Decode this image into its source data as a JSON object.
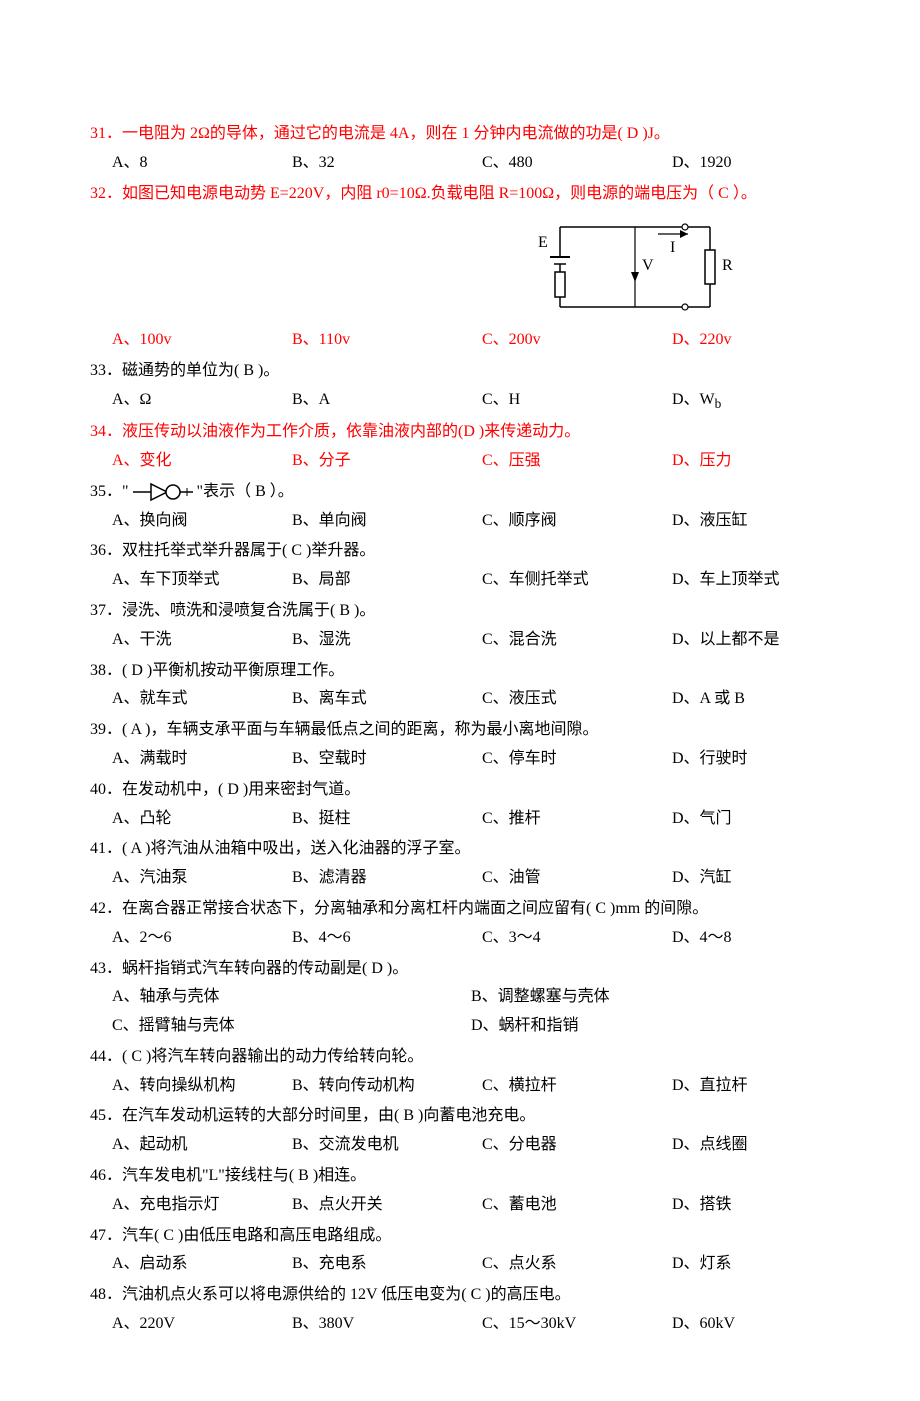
{
  "questions": [
    {
      "num": "31",
      "text_pre": "．一电阻为 2Ω的导体，通过它的电流是 4A，则在 1 分钟内电流做的功是(",
      "answer": "   D   ",
      "text_post": ")J。",
      "color": "red",
      "options": {
        "a": "A、8",
        "b": "B、32",
        "c": "C、480",
        "d": "D、1920"
      },
      "opt_color": "black"
    },
    {
      "num": "32",
      "text_pre": "．如图已知电源电动势 E=220V，内阻 r0=10Ω.负载电阻 R=100Ω，则电源的端电压为（",
      "answer": "   C   ",
      "text_post": "）。",
      "color": "red",
      "has_circuit": true,
      "options": {
        "a": "A、100v",
        "b": "B、110v",
        "c": "C、200v",
        "d": "D、220v"
      },
      "opt_color": "red"
    },
    {
      "num": "33",
      "text_pre": "．磁通势的单位为(",
      "answer": "   B   ",
      "text_post": ")。",
      "color": "black",
      "options": {
        "a": "A、Ω",
        "b": "B、A",
        "c": "C、H",
        "d": "D、Wb",
        "d_sub": "b"
      },
      "opt_color": "black"
    },
    {
      "num": "34",
      "text_pre": "．液压传动以油液作为工作介质，依靠油液内部的(",
      "answer": "D   ",
      "text_post": ")来传递动力。",
      "color": "red",
      "options": {
        "a": "A、变化",
        "b": "B、分子",
        "c": "C、压强",
        "d": "D、压力"
      },
      "opt_color": "red"
    },
    {
      "num": "35",
      "text_pre": "．\"",
      "symbol": true,
      "text_mid": "\"表示（",
      "answer": "   B   ",
      "text_post": "）。",
      "color": "black",
      "options": {
        "a": "A、换向阀",
        "b": "B、单向阀",
        "c": "C、顺序阀",
        "d": "D、液压缸"
      },
      "opt_color": "black"
    },
    {
      "num": "36",
      "text_pre": "．双柱托举式举升器属于(",
      "answer": "   C   ",
      "text_post": ")举升器。",
      "color": "black",
      "options": {
        "a": "A、车下顶举式",
        "b": "B、局部",
        "c": "C、车侧托举式",
        "d": "D、车上顶举式"
      },
      "opt_color": "black"
    },
    {
      "num": "37",
      "text_pre": "．浸洗、喷洗和浸喷复合洗属于(",
      "answer": "   B   ",
      "text_post": ")。",
      "color": "black",
      "options": {
        "a": "A、干洗",
        "b": "B、湿洗",
        "c": "C、混合洗",
        "d": "D、以上都不是"
      },
      "opt_color": "black"
    },
    {
      "num": "38",
      "text_pre": "．(",
      "answer": "   D   ",
      "text_post": ")平衡机按动平衡原理工作。",
      "color": "black",
      "options": {
        "a": "A、就车式",
        "b": "B、离车式",
        "c": "C、液压式",
        "d": "D、A 或 B"
      },
      "opt_color": "black"
    },
    {
      "num": "39",
      "text_pre": "．(",
      "answer": "   A   ",
      "text_post": ")，车辆支承平面与车辆最低点之间的距离，称为最小离地间隙。",
      "color": "black",
      "options": {
        "a": "A、满载时",
        "b": "B、空载时",
        "c": "C、停车时",
        "d": "D、行驶时"
      },
      "opt_color": "black"
    },
    {
      "num": "40",
      "text_pre": "．在发动机中，(",
      "answer": "   D   ",
      "text_post": ")用来密封气道。",
      "color": "black",
      "options": {
        "a": "A、凸轮",
        "b": "B、挺柱",
        "c": "C、推杆",
        "d": "D、气门"
      },
      "opt_color": "black"
    },
    {
      "num": "41",
      "text_pre": "．(",
      "answer": "   A   ",
      "text_post": ")将汽油从油箱中吸出，送入化油器的浮子室。",
      "color": "black",
      "options": {
        "a": "A、汽油泵",
        "b": "B、滤清器",
        "c": "C、油管",
        "d": "D、汽缸"
      },
      "opt_color": "black"
    },
    {
      "num": "42",
      "text_pre": "．在离合器正常接合状态下，分离轴承和分离杠杆内端面之间应留有(",
      "answer": "   C   ",
      "text_post": ")mm 的间隙。",
      "color": "black",
      "options": {
        "a": "A、2～6",
        "b": "B、4～6",
        "c": "C、3～4",
        "d": "D、4～8"
      },
      "opt_color": "black"
    },
    {
      "num": "43",
      "text_pre": "．蜗杆指销式汽车转向器的传动副是(",
      "answer": "   D   ",
      "text_post": ")。",
      "color": "black",
      "two_col": true,
      "options": {
        "a": "A、轴承与壳体",
        "b": "B、调整螺塞与壳体",
        "c": "C、摇臂轴与壳体",
        "d": "D、蜗杆和指销"
      },
      "opt_color": "black"
    },
    {
      "num": "44",
      "text_pre": "．(",
      "answer": "   C   ",
      "text_post": ")将汽车转向器输出的动力传给转向轮。",
      "color": "black",
      "options": {
        "a": "A、转向操纵机构",
        "b": "B、转向传动机构",
        "c": "C、横拉杆",
        "d": "D、直拉杆"
      },
      "opt_color": "black"
    },
    {
      "num": "45",
      "text_pre": "．在汽车发动机运转的大部分时间里，由(",
      "answer": "   B   ",
      "text_post": ")向蓄电池充电。",
      "color": "black",
      "options": {
        "a": "A、起动机",
        "b": "B、交流发电机",
        "c": "C、分电器",
        "d": "D、点线圈"
      },
      "opt_color": "black"
    },
    {
      "num": "46",
      "text_pre": "．汽车发电机\"L\"接线柱与(",
      "answer": "   B   ",
      "text_post": ")相连。",
      "color": "black",
      "options": {
        "a": "A、充电指示灯",
        "b": "B、点火开关",
        "c": "C、蓄电池",
        "d": "D、搭铁"
      },
      "opt_color": "black"
    },
    {
      "num": "47",
      "text_pre": "．汽车(",
      "answer": "   C   ",
      "text_post": ")由低压电路和高压电路组成。",
      "color": "black",
      "options": {
        "a": "A、启动系",
        "b": "B、充电系",
        "c": "C、点火系",
        "d": "D、灯系"
      },
      "opt_color": "black"
    },
    {
      "num": "48",
      "text_pre": "．汽油机点火系可以将电源供给的 12V 低压电变为(",
      "answer": "   C   ",
      "text_post": ")的高压电。",
      "color": "black",
      "options": {
        "a": "A、220V",
        "b": "B、380V",
        "c": "C、15～30kV",
        "d": "D、60kV"
      },
      "opt_color": "black"
    }
  ],
  "circuit": {
    "labels": {
      "E": "E",
      "I": "I",
      "V": "V",
      "R": "R"
    }
  }
}
